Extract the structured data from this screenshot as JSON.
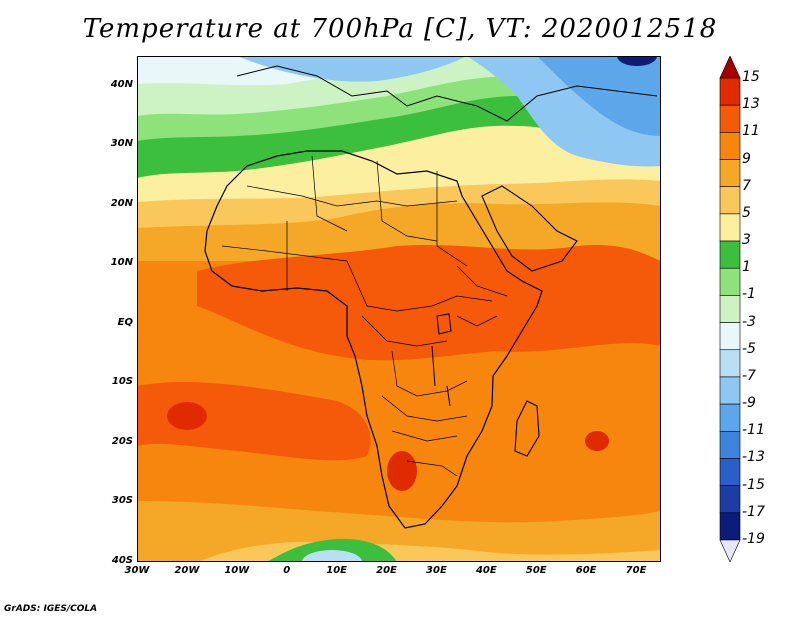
{
  "title": "Temperature at 700hPa [C], VT: 2020012518",
  "credit": "GrADS: IGES/COLA",
  "map": {
    "lon_range": [
      -30,
      75
    ],
    "lat_range": [
      -40,
      45
    ],
    "lat_ticks": [
      {
        "value": 40,
        "label": "40N"
      },
      {
        "value": 30,
        "label": "30N"
      },
      {
        "value": 20,
        "label": "20N"
      },
      {
        "value": 10,
        "label": "10N"
      },
      {
        "value": 0,
        "label": "EQ"
      },
      {
        "value": -10,
        "label": "10S"
      },
      {
        "value": -20,
        "label": "20S"
      },
      {
        "value": -30,
        "label": "30S"
      },
      {
        "value": -40,
        "label": "40S"
      }
    ],
    "lon_ticks": [
      {
        "value": -30,
        "label": "30W"
      },
      {
        "value": -20,
        "label": "20W"
      },
      {
        "value": -10,
        "label": "10W"
      },
      {
        "value": 0,
        "label": "0"
      },
      {
        "value": 10,
        "label": "10E"
      },
      {
        "value": 20,
        "label": "20E"
      },
      {
        "value": 30,
        "label": "30E"
      },
      {
        "value": 40,
        "label": "40E"
      },
      {
        "value": 50,
        "label": "50E"
      },
      {
        "value": 60,
        "label": "60E"
      },
      {
        "value": 70,
        "label": "70E"
      }
    ]
  },
  "colorbar": {
    "labels": [
      "15",
      "13",
      "11",
      "9",
      "7",
      "5",
      "3",
      "1",
      "-1",
      "-3",
      "-5",
      "-7",
      "-9",
      "-11",
      "-13",
      "-15",
      "-17",
      "-19"
    ],
    "colors": [
      "#a50000",
      "#e02a00",
      "#f55a0a",
      "#f7860f",
      "#f5a828",
      "#fac85a",
      "#fcefa0",
      "#3cbf3c",
      "#8ee27c",
      "#cdf2c4",
      "#e8f8f8",
      "#b7e0f5",
      "#8ec8f2",
      "#5ca6ea",
      "#3c84dc",
      "#2a5ec8",
      "#1c3ca6",
      "#0c1c78",
      "#e8e6fa"
    ]
  }
}
